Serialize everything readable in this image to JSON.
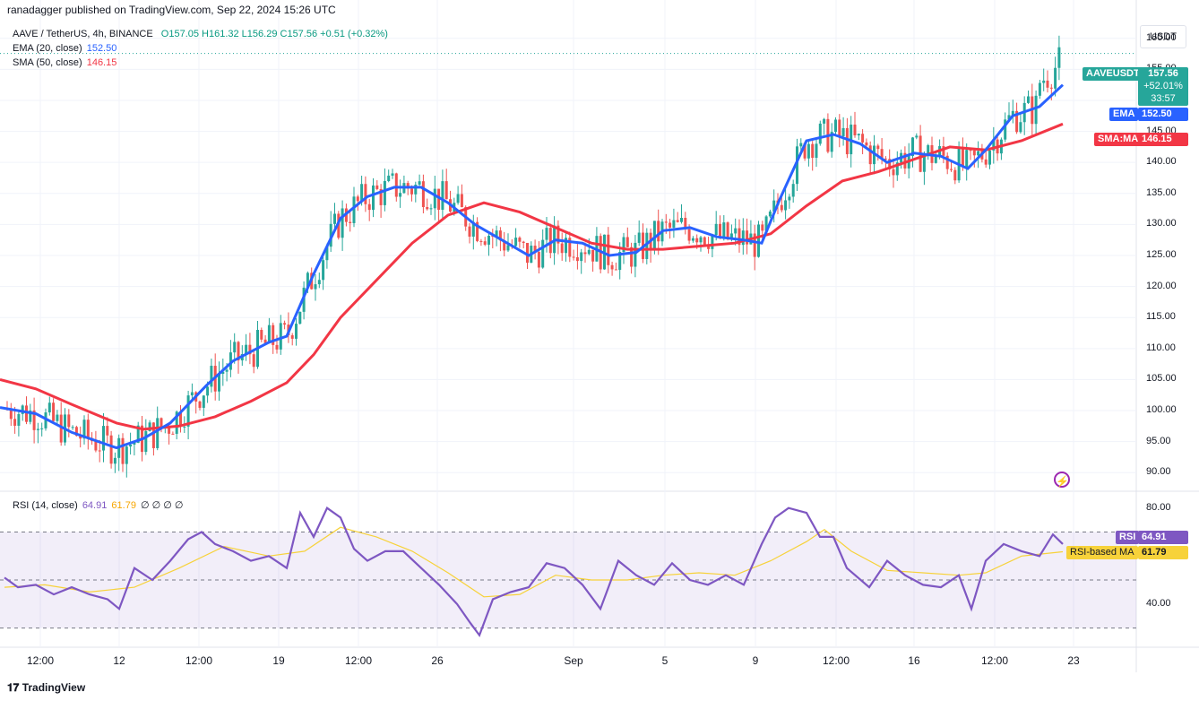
{
  "header": {
    "published": "ranadagger published on TradingView.com, Sep 22, 2024 15:26 UTC"
  },
  "legend": {
    "symbol": "AAVE / TetherUS, 4h, BINANCE",
    "ohlc": "O157.05 H161.32 L156.29 C157.56 +0.51 (+0.32%)",
    "ema_label": "EMA (20, close)",
    "ema_value": "152.50",
    "sma_label": "SMA (50, close)",
    "sma_value": "146.15",
    "rsi_label": "RSI (14, close)",
    "rsi_value": "64.91",
    "rsi_ma_value": "61.79",
    "rsi_extra": "∅ ∅ ∅ ∅"
  },
  "price_axis": {
    "unit": "USDT",
    "ticks": [
      "160.00",
      "155.00",
      "150.00",
      "145.00",
      "140.00",
      "135.00",
      "130.00",
      "125.00",
      "120.00",
      "115.00",
      "110.00",
      "105.00",
      "100.00",
      "95.00",
      "90.00"
    ]
  },
  "rsi_axis": {
    "ticks": [
      "80.00",
      "40.00"
    ]
  },
  "labels": {
    "symbol_tag": "AAVEUSDT",
    "price": "157.56",
    "change": "+52.01%",
    "countdown": "33:57",
    "ema_tag": "EMA",
    "ema_val": "152.50",
    "sma_tag": "SMA:MA",
    "sma_val": "146.15",
    "rsi_tag": "RSI",
    "rsi_val": "64.91",
    "rsi_ma_tag": "RSI-based MA",
    "rsi_ma_val": "61.79"
  },
  "x_axis": {
    "ticks": [
      "12:00",
      "12",
      "12:00",
      "19",
      "12:00",
      "26",
      "Sep",
      "5",
      "9",
      "12:00",
      "16",
      "12:00",
      "23"
    ]
  },
  "footer": {
    "brand": "TradingView"
  },
  "colors": {
    "up": "#26a69a",
    "down": "#ef5350",
    "ema": "#2962ff",
    "sma": "#f23645",
    "rsi": "#7e57c2",
    "rsi_ma": "#f7d23a"
  },
  "chart_data": [
    {
      "type": "candlestick",
      "title": "AAVE / TetherUS, 4h, BINANCE",
      "ylim": [
        87,
        163
      ],
      "x_ticks": [
        "12:00",
        "12",
        "12:00",
        "19",
        "12:00",
        "26",
        "Sep",
        "5",
        "9",
        "12:00",
        "16",
        "12:00",
        "23"
      ],
      "series": [
        {
          "name": "EMA (20, close)",
          "points": [
            [
              0,
              100.5
            ],
            [
              40,
              99.5
            ],
            [
              80,
              96.5
            ],
            [
              130,
              94
            ],
            [
              160,
              95.5
            ],
            [
              190,
              98
            ],
            [
              230,
              104
            ],
            [
              260,
              108
            ],
            [
              300,
              111
            ],
            [
              320,
              112
            ],
            [
              350,
              122
            ],
            [
              380,
              131
            ],
            [
              410,
              134.5
            ],
            [
              440,
              136
            ],
            [
              470,
              136
            ],
            [
              500,
              133.5
            ],
            [
              530,
              130
            ],
            [
              560,
              127.5
            ],
            [
              590,
              125
            ],
            [
              620,
              127.5
            ],
            [
              650,
              127
            ],
            [
              680,
              125
            ],
            [
              710,
              125.5
            ],
            [
              740,
              129
            ],
            [
              770,
              129.5
            ],
            [
              800,
              128
            ],
            [
              830,
              127.5
            ],
            [
              850,
              127
            ],
            [
              870,
              134
            ],
            [
              900,
              143.5
            ],
            [
              930,
              144.5
            ],
            [
              960,
              143
            ],
            [
              990,
              140
            ],
            [
              1020,
              141.5
            ],
            [
              1050,
              141
            ],
            [
              1080,
              139
            ],
            [
              1100,
              142
            ],
            [
              1130,
              147.5
            ],
            [
              1160,
              149
            ],
            [
              1186,
              152.5
            ]
          ]
        },
        {
          "name": "SMA (50, close)",
          "points": [
            [
              0,
              105
            ],
            [
              40,
              103.5
            ],
            [
              80,
              101
            ],
            [
              130,
              98
            ],
            [
              160,
              97
            ],
            [
              200,
              97.5
            ],
            [
              240,
              99
            ],
            [
              280,
              101.5
            ],
            [
              320,
              104.5
            ],
            [
              350,
              109
            ],
            [
              380,
              115
            ],
            [
              420,
              121
            ],
            [
              460,
              127
            ],
            [
              500,
              131.5
            ],
            [
              540,
              133.5
            ],
            [
              580,
              132
            ],
            [
              620,
              129.5
            ],
            [
              660,
              127
            ],
            [
              700,
              126
            ],
            [
              740,
              126
            ],
            [
              780,
              126.5
            ],
            [
              820,
              127
            ],
            [
              860,
              128.5
            ],
            [
              900,
              133
            ],
            [
              940,
              137
            ],
            [
              980,
              138.5
            ],
            [
              1020,
              140.5
            ],
            [
              1060,
              142.5
            ],
            [
              1100,
              142
            ],
            [
              1140,
              143.5
            ],
            [
              1186,
              146.2
            ]
          ]
        }
      ],
      "last_close": 157.56
    },
    {
      "type": "line",
      "title": "RSI (14, close)",
      "ylim": [
        22,
        87
      ],
      "levels": [
        70,
        50,
        30
      ],
      "series": [
        {
          "name": "RSI",
          "points": [
            [
              5,
              51
            ],
            [
              20,
              47
            ],
            [
              40,
              48
            ],
            [
              60,
              44
            ],
            [
              80,
              47
            ],
            [
              100,
              44
            ],
            [
              120,
              42
            ],
            [
              133,
              38
            ],
            [
              150,
              55
            ],
            [
              170,
              50
            ],
            [
              190,
              58
            ],
            [
              210,
              67
            ],
            [
              225,
              70
            ],
            [
              240,
              65
            ],
            [
              260,
              62
            ],
            [
              280,
              58
            ],
            [
              300,
              60
            ],
            [
              320,
              55
            ],
            [
              335,
              78
            ],
            [
              350,
              68
            ],
            [
              365,
              80
            ],
            [
              380,
              76
            ],
            [
              395,
              63
            ],
            [
              410,
              58
            ],
            [
              430,
              62
            ],
            [
              450,
              62
            ],
            [
              470,
              55
            ],
            [
              490,
              48
            ],
            [
              510,
              40
            ],
            [
              525,
              32
            ],
            [
              535,
              27
            ],
            [
              550,
              42
            ],
            [
              570,
              45
            ],
            [
              590,
              47
            ],
            [
              610,
              57
            ],
            [
              630,
              55
            ],
            [
              650,
              48
            ],
            [
              670,
              38
            ],
            [
              690,
              58
            ],
            [
              710,
              52
            ],
            [
              730,
              48
            ],
            [
              750,
              57
            ],
            [
              770,
              50
            ],
            [
              790,
              48
            ],
            [
              810,
              52
            ],
            [
              830,
              48
            ],
            [
              850,
              65
            ],
            [
              865,
              76
            ],
            [
              880,
              80
            ],
            [
              900,
              78
            ],
            [
              915,
              68
            ],
            [
              930,
              68
            ],
            [
              945,
              55
            ],
            [
              970,
              47
            ],
            [
              990,
              58
            ],
            [
              1010,
              52
            ],
            [
              1030,
              48
            ],
            [
              1050,
              47
            ],
            [
              1070,
              52
            ],
            [
              1084,
              38
            ],
            [
              1100,
              58
            ],
            [
              1120,
              65
            ],
            [
              1140,
              62
            ],
            [
              1160,
              60
            ],
            [
              1175,
              69
            ],
            [
              1186,
              65
            ]
          ]
        },
        {
          "name": "RSI-based MA",
          "points": [
            [
              5,
              47
            ],
            [
              50,
              48
            ],
            [
              100,
              45
            ],
            [
              150,
              47
            ],
            [
              200,
              55
            ],
            [
              250,
              64
            ],
            [
              300,
              60
            ],
            [
              340,
              62
            ],
            [
              380,
              72
            ],
            [
              420,
              68
            ],
            [
              460,
              62
            ],
            [
              500,
              53
            ],
            [
              540,
              43
            ],
            [
              580,
              44
            ],
            [
              620,
              52
            ],
            [
              660,
              50
            ],
            [
              700,
              50
            ],
            [
              740,
              52
            ],
            [
              780,
              53
            ],
            [
              820,
              52
            ],
            [
              860,
              58
            ],
            [
              900,
              66
            ],
            [
              920,
              71
            ],
            [
              950,
              62
            ],
            [
              990,
              54
            ],
            [
              1030,
              53
            ],
            [
              1070,
              52
            ],
            [
              1100,
              53
            ],
            [
              1140,
              60
            ],
            [
              1186,
              61.8
            ]
          ]
        }
      ]
    }
  ]
}
